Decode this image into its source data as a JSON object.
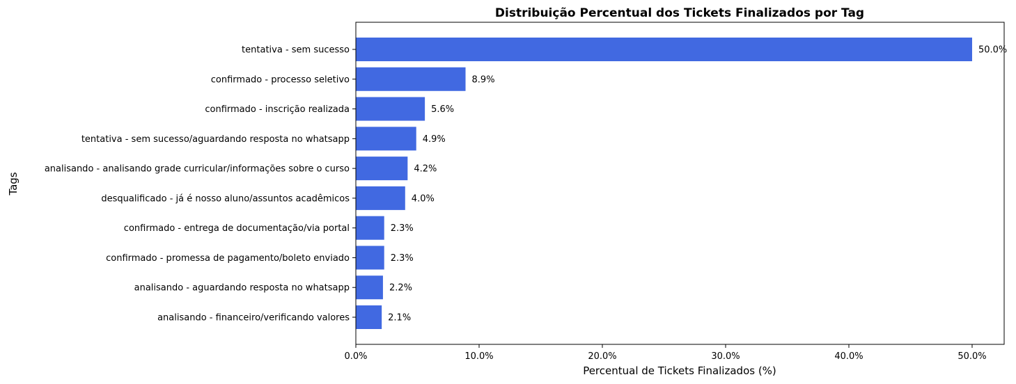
{
  "chart_data": {
    "type": "bar",
    "orientation": "horizontal",
    "title": "Distribuição Percentual dos Tickets Finalizados por Tag",
    "xlabel": "Percentual de Tickets Finalizados (%)",
    "ylabel": "Tags",
    "xlim": [
      0,
      52.6
    ],
    "xticks": [
      0,
      10,
      20,
      30,
      40,
      50
    ],
    "xtick_labels": [
      "0.0%",
      "10.0%",
      "20.0%",
      "30.0%",
      "40.0%",
      "50.0%"
    ],
    "grid": false,
    "bar_color": "#4169E1",
    "categories": [
      "tentativa - sem sucesso",
      "confirmado - processo seletivo",
      "confirmado - inscrição realizada",
      "tentativa - sem sucesso/aguardando resposta no whatsapp",
      "analisando - analisando grade curricular/informações sobre o curso",
      "desqualificado - já é nosso aluno/assuntos acadêmicos",
      "confirmado - entrega de documentação/via portal",
      "confirmado - promessa de pagamento/boleto enviado",
      "analisando - aguardando resposta no whatsapp",
      "analisando - financeiro/verificando valores"
    ],
    "values": [
      50.0,
      8.9,
      5.6,
      4.9,
      4.2,
      4.0,
      2.3,
      2.3,
      2.2,
      2.1
    ],
    "value_labels": [
      "50.0%",
      "8.9%",
      "5.6%",
      "4.9%",
      "4.2%",
      "4.0%",
      "2.3%",
      "2.3%",
      "2.2%",
      "2.1%"
    ]
  }
}
